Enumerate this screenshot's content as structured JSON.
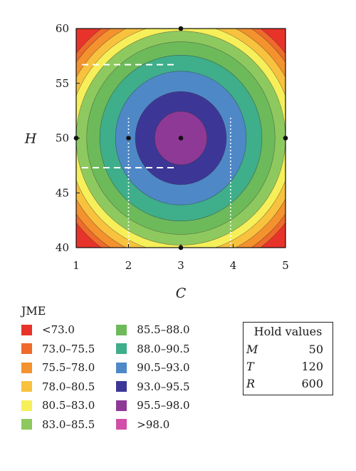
{
  "chart_data": {
    "type": "contour",
    "title": "",
    "xlabel": "C",
    "ylabel": "H",
    "xlim": [
      1,
      5
    ],
    "ylim": [
      40,
      60
    ],
    "x_ticks": [
      "1",
      "2",
      "3",
      "4",
      "5"
    ],
    "y_ticks": [
      "40",
      "45",
      "50",
      "55",
      "60"
    ],
    "center": {
      "x": 3,
      "y": 50
    },
    "boundary_radii_x": [
      2.55,
      2.45,
      2.3,
      2.15,
      2.0,
      1.8,
      1.55,
      1.25,
      0.87,
      0.5
    ],
    "boundary_levels": [
      73.0,
      75.5,
      78.0,
      80.5,
      83.0,
      85.5,
      88.0,
      90.5,
      93.0,
      95.5,
      98.0
    ],
    "design_points": [
      {
        "x": 1,
        "y": 50
      },
      {
        "x": 2,
        "y": 50
      },
      {
        "x": 3,
        "y": 50
      },
      {
        "x": 5,
        "y": 50
      },
      {
        "x": 3,
        "y": 60
      },
      {
        "x": 3,
        "y": 40
      }
    ],
    "dashed_lines": [
      {
        "y": 56.7,
        "x_from": 1,
        "x_to": 2.9
      },
      {
        "y": 47.3,
        "x_from": 1,
        "x_to": 2.9
      }
    ],
    "dotted_lines": [
      {
        "x": 2.0,
        "y_from": 40,
        "y_to": 52
      },
      {
        "x": 3.95,
        "y_from": 40,
        "y_to": 52
      }
    ],
    "legend": {
      "title": "JME",
      "items": [
        {
          "label": "<73.0",
          "color": "#e8332a"
        },
        {
          "label": "73.0–75.5",
          "color": "#ef6a2b"
        },
        {
          "label": "75.5–78.0",
          "color": "#f4922e"
        },
        {
          "label": "78.0–80.5",
          "color": "#f8c23e"
        },
        {
          "label": "80.5–83.0",
          "color": "#f6ef59"
        },
        {
          "label": "83.0–85.5",
          "color": "#8ec95f"
        },
        {
          "label": "85.5–88.0",
          "color": "#6dba5b"
        },
        {
          "label": "88.0–90.5",
          "color": "#3fae8a"
        },
        {
          "label": "90.5–93.0",
          "color": "#4f88c7"
        },
        {
          "label": "93.0–95.5",
          "color": "#3c3797"
        },
        {
          "label": "95.5–98.0",
          "color": "#8e3996"
        },
        {
          "label": ">98.0",
          "color": "#d04fa8"
        }
      ]
    },
    "hold_values": {
      "title": "Hold values",
      "rows": [
        {
          "name": "M",
          "value": "50"
        },
        {
          "name": "T",
          "value": "120"
        },
        {
          "name": "R",
          "value": "600"
        }
      ]
    }
  }
}
